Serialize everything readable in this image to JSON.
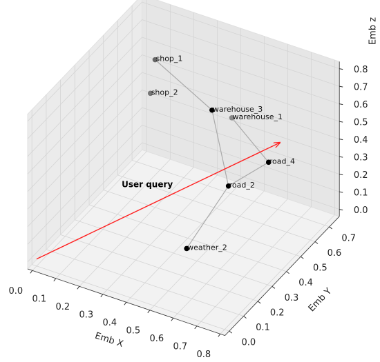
{
  "chart_data": {
    "type": "scatter3d",
    "xlabel": "Emb X",
    "ylabel": "Emb Y",
    "zlabel": "Emb z",
    "xlim": [
      -0.02,
      0.82
    ],
    "ylim": [
      -0.03,
      0.77
    ],
    "zlim": [
      -0.04,
      0.84
    ],
    "xticks": [
      {
        "value": 0,
        "label": "0.0"
      },
      0.1,
      0.2,
      0.3,
      0.4,
      0.5,
      0.6,
      0.7,
      0.8
    ],
    "yticks": [
      {
        "value": 0,
        "label": "0.0"
      },
      0.1,
      0.2,
      0.3,
      0.4,
      0.5,
      0.6,
      0.7
    ],
    "zticks": [
      {
        "value": 0,
        "label": "0.0"
      },
      0.1,
      0.2,
      0.3,
      0.4,
      0.5,
      0.6,
      0.7,
      0.8
    ],
    "points": {
      "names": [
        "shop_1",
        "shop_2",
        "warehouse_3",
        "warehouse_1",
        "road_4",
        "road_2",
        "weather_2"
      ],
      "x": [
        0.2,
        0.18,
        0.43,
        0.49,
        0.61,
        0.5,
        0.45
      ],
      "y": [
        0.5,
        0.5,
        0.52,
        0.56,
        0.62,
        0.52,
        0.31
      ],
      "z": [
        0.8,
        0.6,
        0.6,
        0.55,
        0.3,
        0.2,
        0.0
      ],
      "colors": [
        "#666666",
        "#777777",
        "#000000",
        "#888888",
        "#000000",
        "#000000",
        "#000000"
      ]
    },
    "edges": [
      [
        "shop_1",
        "warehouse_3"
      ],
      [
        "warehouse_3",
        "road_2"
      ],
      [
        "road_2",
        "weather_2"
      ],
      [
        "warehouse_1",
        "road_4"
      ],
      [
        "road_4",
        "road_2"
      ]
    ],
    "edge_color": "#aaaaaa",
    "arrow": {
      "start": [
        0,
        0,
        0
      ],
      "end": [
        0.64,
        0.65,
        0.4
      ],
      "color": "#ff2020"
    },
    "annotation": "User query"
  }
}
